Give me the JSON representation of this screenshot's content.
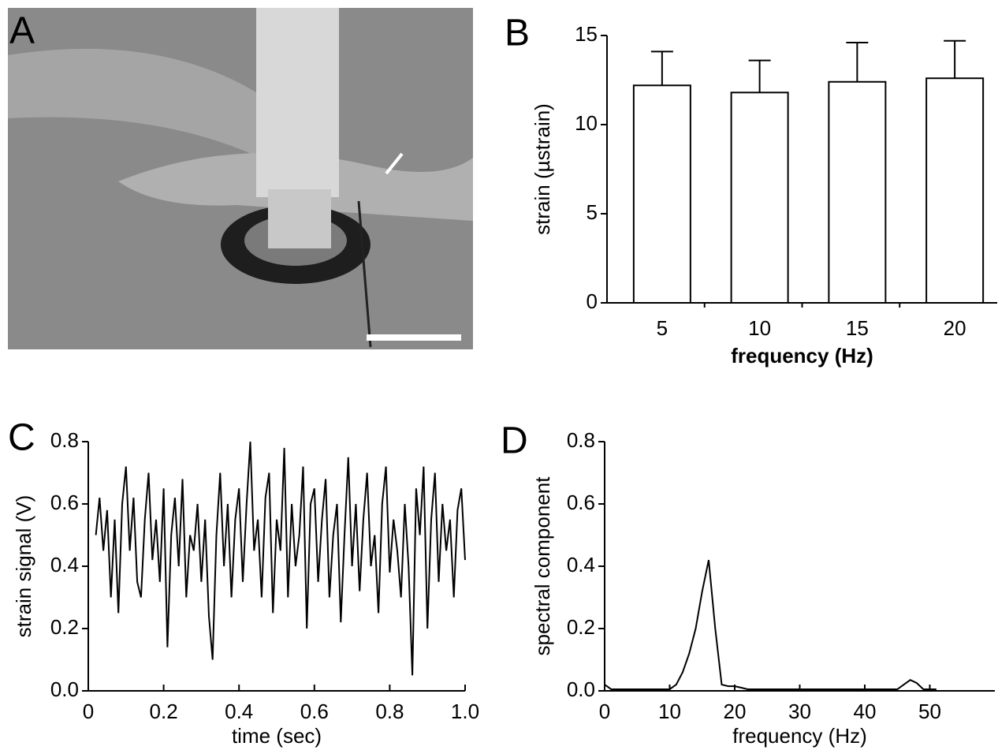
{
  "photo": {
    "label": "A"
  },
  "chart_data": [
    {
      "type": "bar",
      "label": "B",
      "ylabel": "strain (µstrain)",
      "xlabel": "frequency (Hz)",
      "categories": [
        "5",
        "10",
        "15",
        "20"
      ],
      "values": [
        12.2,
        11.8,
        12.4,
        12.6
      ],
      "errors": [
        1.9,
        1.8,
        2.2,
        2.1
      ],
      "color": "#ffffff",
      "ylim": [
        0,
        15
      ],
      "yticks": [
        0,
        5,
        10,
        15
      ]
    },
    {
      "type": "line",
      "label": "C",
      "ylabel": "strain signal (V)",
      "xlabel": "time (sec)",
      "color": "#000000",
      "x": [
        0.02,
        0.03,
        0.04,
        0.05,
        0.06,
        0.07,
        0.08,
        0.09,
        0.1,
        0.11,
        0.12,
        0.13,
        0.14,
        0.15,
        0.16,
        0.17,
        0.18,
        0.19,
        0.2,
        0.21,
        0.22,
        0.23,
        0.24,
        0.25,
        0.26,
        0.27,
        0.28,
        0.29,
        0.3,
        0.31,
        0.32,
        0.33,
        0.34,
        0.35,
        0.36,
        0.37,
        0.38,
        0.39,
        0.4,
        0.41,
        0.42,
        0.43,
        0.44,
        0.45,
        0.46,
        0.47,
        0.48,
        0.49,
        0.5,
        0.51,
        0.52,
        0.53,
        0.54,
        0.55,
        0.56,
        0.57,
        0.58,
        0.59,
        0.6,
        0.61,
        0.62,
        0.63,
        0.64,
        0.65,
        0.66,
        0.67,
        0.68,
        0.69,
        0.7,
        0.71,
        0.72,
        0.73,
        0.74,
        0.75,
        0.76,
        0.77,
        0.78,
        0.79,
        0.8,
        0.81,
        0.82,
        0.83,
        0.84,
        0.85,
        0.86,
        0.87,
        0.88,
        0.89,
        0.9,
        0.91,
        0.92,
        0.93,
        0.94,
        0.95,
        0.96,
        0.97,
        0.98,
        0.99,
        1.0
      ],
      "values": [
        0.5,
        0.62,
        0.45,
        0.58,
        0.3,
        0.55,
        0.25,
        0.6,
        0.72,
        0.45,
        0.62,
        0.35,
        0.3,
        0.55,
        0.7,
        0.42,
        0.55,
        0.35,
        0.65,
        0.14,
        0.5,
        0.62,
        0.4,
        0.68,
        0.3,
        0.5,
        0.45,
        0.6,
        0.35,
        0.55,
        0.24,
        0.1,
        0.5,
        0.7,
        0.4,
        0.6,
        0.3,
        0.55,
        0.65,
        0.35,
        0.6,
        0.8,
        0.45,
        0.55,
        0.3,
        0.62,
        0.7,
        0.25,
        0.55,
        0.45,
        0.78,
        0.3,
        0.6,
        0.4,
        0.5,
        0.72,
        0.2,
        0.6,
        0.65,
        0.35,
        0.55,
        0.68,
        0.3,
        0.5,
        0.6,
        0.22,
        0.5,
        0.75,
        0.4,
        0.6,
        0.32,
        0.55,
        0.7,
        0.4,
        0.5,
        0.25,
        0.6,
        0.72,
        0.38,
        0.55,
        0.45,
        0.3,
        0.6,
        0.4,
        0.05,
        0.65,
        0.5,
        0.72,
        0.2,
        0.55,
        0.7,
        0.35,
        0.6,
        0.45,
        0.55,
        0.3,
        0.58,
        0.65,
        0.42
      ],
      "xlim": [
        0,
        1
      ],
      "xticks": [
        0,
        0.2,
        0.4,
        0.6,
        0.8,
        {
          "value": 1,
          "label": "1.0"
        }
      ],
      "ylim": [
        0,
        0.8
      ],
      "yticks": [
        {
          "value": 0,
          "label": "0.0"
        },
        0.2,
        0.4,
        0.6,
        0.8
      ]
    },
    {
      "type": "line",
      "label": "D",
      "ylabel": "spectral component",
      "xlabel": "frequency (Hz)",
      "color": "#000000",
      "x": [
        0,
        1,
        2,
        3,
        4,
        5,
        6,
        7,
        8,
        9,
        10,
        11,
        12,
        13,
        14,
        15,
        16,
        17,
        18,
        19,
        20,
        21,
        22,
        23,
        24,
        25,
        26,
        27,
        28,
        29,
        30,
        31,
        32,
        33,
        34,
        35,
        36,
        37,
        38,
        39,
        40,
        41,
        42,
        43,
        44,
        45,
        46,
        47,
        48,
        49,
        50,
        51
      ],
      "values": [
        0.02,
        0.005,
        0.005,
        0.005,
        0.005,
        0.005,
        0.005,
        0.005,
        0.005,
        0.005,
        0.005,
        0.02,
        0.06,
        0.12,
        0.2,
        0.32,
        0.42,
        0.2,
        0.02,
        0.015,
        0.015,
        0.01,
        0.005,
        0.005,
        0.005,
        0.005,
        0.005,
        0.005,
        0.005,
        0.005,
        0.005,
        0.005,
        0.005,
        0.005,
        0.005,
        0.005,
        0.005,
        0.005,
        0.005,
        0.005,
        0.005,
        0.005,
        0.005,
        0.005,
        0.005,
        0.005,
        0.02,
        0.035,
        0.025,
        0.005,
        0.005,
        0.005
      ],
      "xlim": [
        0,
        60
      ],
      "xticks": [
        0,
        10,
        20,
        30,
        40,
        50
      ],
      "ylim": [
        0,
        0.8
      ],
      "yticks": [
        {
          "value": 0,
          "label": "0.0"
        },
        0.2,
        0.4,
        0.6,
        0.8
      ]
    }
  ]
}
